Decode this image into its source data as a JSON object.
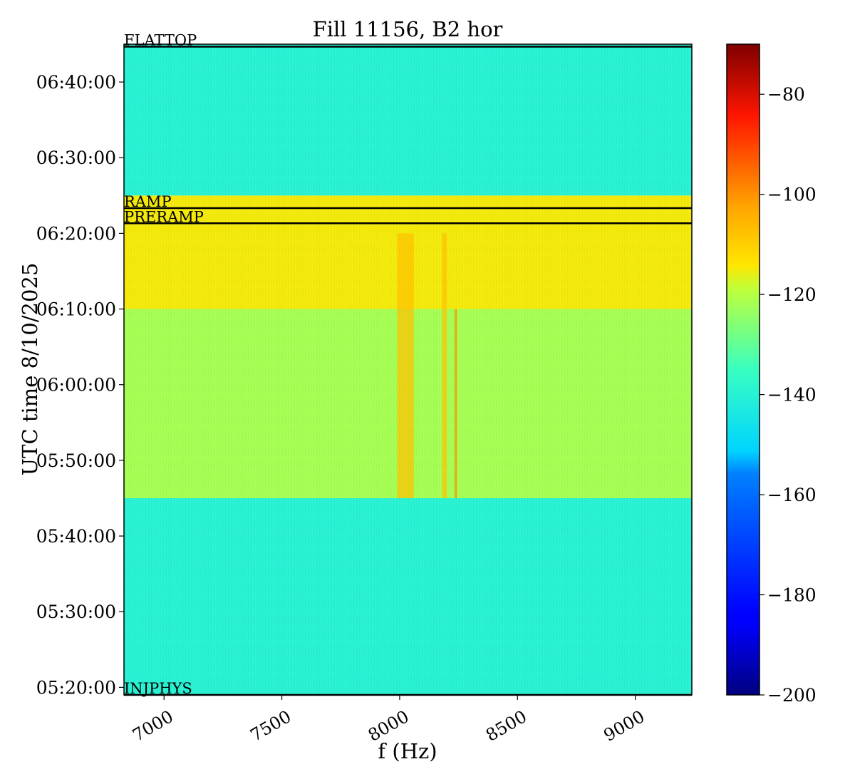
{
  "chart_data": {
    "type": "heatmap",
    "title": "Fill 11156, B2 hor",
    "xlabel": "f (Hz)",
    "ylabel": "UTC time 8/10/2025",
    "xlim": [
      6830,
      9240
    ],
    "ylim": [
      "05:19:00",
      "06:45:00"
    ],
    "x_ticks": [
      7000,
      7500,
      8000,
      8500,
      9000
    ],
    "x_tick_labels": [
      "7000",
      "7500",
      "8000",
      "8500",
      "9000"
    ],
    "y_ticks": [
      "05:20:00",
      "05:30:00",
      "05:40:00",
      "05:50:00",
      "06:00:00",
      "06:10:00",
      "06:20:00",
      "06:30:00",
      "06:40:00"
    ],
    "colormap": "jet",
    "colorbar": {
      "range": [
        -200,
        -70
      ],
      "ticks": [
        -80,
        -100,
        -120,
        -140,
        -160,
        -180,
        -200
      ],
      "tick_labels": [
        "−80",
        "−100",
        "−120",
        "−140",
        "−160",
        "−180",
        "−200"
      ]
    },
    "levels": [
      {
        "from": "05:19:00",
        "to": "05:45:00",
        "value": -140
      },
      {
        "from": "05:45:00",
        "to": "06:10:00",
        "value": -122
      },
      {
        "from": "06:10:00",
        "to": "06:25:00",
        "value": -115
      },
      {
        "from": "06:25:00",
        "to": "06:45:00",
        "value": -140
      }
    ],
    "spectral_lines": [
      {
        "f_min": 7990,
        "f_max": 8060,
        "from": "05:45:00",
        "to": "06:20:00",
        "value": -108
      },
      {
        "f_min": 8180,
        "f_max": 8200,
        "from": "05:45:00",
        "to": "06:20:00",
        "value": -108
      },
      {
        "f_min": 8233,
        "f_max": 8243,
        "from": "05:45:00",
        "to": "06:10:00",
        "value": -100
      }
    ],
    "event_markers": [
      {
        "label": "FLATTOP",
        "time": "06:44:40"
      },
      {
        "label": "RAMP",
        "time": "06:23:20"
      },
      {
        "label": "PRERAMP",
        "time": "06:21:20"
      },
      {
        "label": "INJPHYS",
        "time": "05:19:00"
      }
    ]
  }
}
